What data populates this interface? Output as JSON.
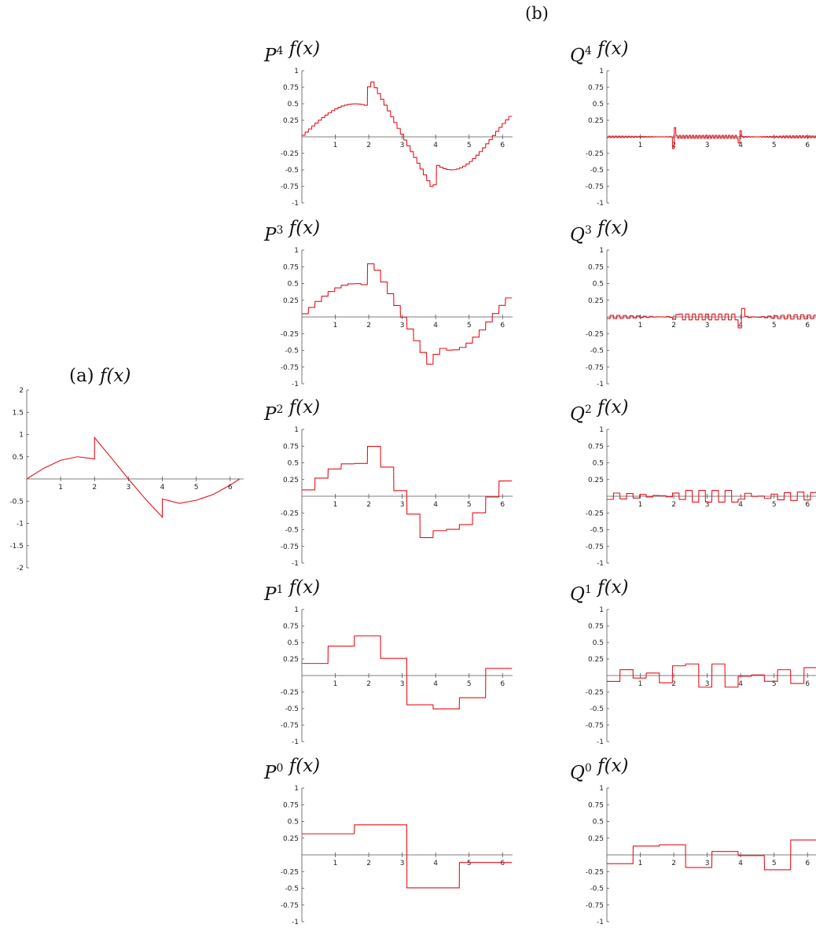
{
  "figure_label_b": "(b)",
  "chart_data": [
    {
      "id": "f",
      "type": "line",
      "title_prefix": "(a) ",
      "title_letter": "",
      "title_sup": "",
      "title_func": "f(x)",
      "xlim": [
        0,
        6.4
      ],
      "ylim": [
        -2,
        2
      ],
      "xticks": [
        1,
        2,
        3,
        4,
        5,
        6
      ],
      "yticks": [
        2,
        1.5,
        1,
        0.5,
        -0.5,
        -1,
        -1.5,
        -2
      ],
      "series": [
        {
          "kind": "function",
          "levels": 0,
          "x": [
            0,
            0.5,
            1,
            1.5,
            2,
            2.0001,
            2.5,
            3,
            3.5,
            4,
            4.0001,
            4.5,
            5,
            5.5,
            6,
            6.28
          ],
          "y": [
            0,
            0.24,
            0.42,
            0.5,
            0.45,
            0.93,
            0.47,
            0.0,
            -0.45,
            -0.86,
            -0.45,
            -0.55,
            -0.48,
            -0.35,
            -0.14,
            0
          ]
        }
      ]
    },
    {
      "id": "P4",
      "type": "line",
      "title_prefix": "",
      "title_letter": "P",
      "title_sup": "4",
      "title_func": "f(x)",
      "xlim": [
        0,
        6.3
      ],
      "ylim": [
        -1,
        1
      ],
      "xticks": [
        1,
        2,
        3,
        4,
        5,
        6
      ],
      "yticks": [
        1,
        0.75,
        0.5,
        0.25,
        -0.25,
        -0.5,
        -0.75,
        -1
      ],
      "series": [
        {
          "kind": "projection",
          "levels": 4
        }
      ]
    },
    {
      "id": "Q4",
      "type": "line",
      "title_prefix": "",
      "title_letter": "Q",
      "title_sup": "4",
      "title_func": "f(x)",
      "xlim": [
        0,
        6.3
      ],
      "ylim": [
        -1,
        1
      ],
      "xticks": [
        1,
        2,
        3,
        4,
        5,
        6
      ],
      "yticks": [
        1,
        0.75,
        0.5,
        0.25,
        -0.25,
        -0.5,
        -0.75,
        -1
      ],
      "series": [
        {
          "kind": "detail",
          "levels": 4
        }
      ]
    },
    {
      "id": "P3",
      "type": "line",
      "title_prefix": "",
      "title_letter": "P",
      "title_sup": "3",
      "title_func": "f(x)",
      "xlim": [
        0,
        6.3
      ],
      "ylim": [
        -1,
        1
      ],
      "xticks": [
        1,
        2,
        3,
        4,
        5,
        6
      ],
      "yticks": [
        1,
        0.75,
        0.5,
        0.25,
        -0.25,
        -0.5,
        -0.75,
        -1
      ],
      "series": [
        {
          "kind": "projection",
          "levels": 3
        }
      ]
    },
    {
      "id": "Q3",
      "type": "line",
      "title_prefix": "",
      "title_letter": "Q",
      "title_sup": "3",
      "title_func": "f(x)",
      "xlim": [
        0,
        6.3
      ],
      "ylim": [
        -1,
        1
      ],
      "xticks": [
        1,
        2,
        3,
        4,
        5,
        6
      ],
      "yticks": [
        1,
        0.75,
        0.5,
        0.25,
        -0.25,
        -0.5,
        -0.75,
        -1
      ],
      "series": [
        {
          "kind": "detail",
          "levels": 3
        }
      ]
    },
    {
      "id": "P2",
      "type": "line",
      "title_prefix": "",
      "title_letter": "P",
      "title_sup": "2",
      "title_func": "f(x)",
      "xlim": [
        0,
        6.3
      ],
      "ylim": [
        -1,
        1
      ],
      "xticks": [
        1,
        2,
        3,
        4,
        5,
        6
      ],
      "yticks": [
        1,
        0.75,
        0.5,
        0.25,
        -0.25,
        -0.5,
        -0.75,
        -1
      ],
      "series": [
        {
          "kind": "projection",
          "levels": 2
        }
      ]
    },
    {
      "id": "Q2",
      "type": "line",
      "title_prefix": "",
      "title_letter": "Q",
      "title_sup": "2",
      "title_func": "f(x)",
      "xlim": [
        0,
        6.3
      ],
      "ylim": [
        -1,
        1
      ],
      "xticks": [
        1,
        2,
        3,
        4,
        5,
        6
      ],
      "yticks": [
        1,
        0.75,
        0.5,
        0.25,
        -0.25,
        -0.5,
        -0.75,
        -1
      ],
      "series": [
        {
          "kind": "detail",
          "levels": 2
        }
      ]
    },
    {
      "id": "P1",
      "type": "line",
      "title_prefix": "",
      "title_letter": "P",
      "title_sup": "1",
      "title_func": "f(x)",
      "xlim": [
        0,
        6.3
      ],
      "ylim": [
        -1,
        1
      ],
      "xticks": [
        1,
        2,
        3,
        4,
        5,
        6
      ],
      "yticks": [
        1,
        0.75,
        0.5,
        0.25,
        -0.25,
        -0.5,
        -0.75,
        -1
      ],
      "series": [
        {
          "kind": "projection",
          "levels": 1
        }
      ]
    },
    {
      "id": "Q1",
      "type": "line",
      "title_prefix": "",
      "title_letter": "Q",
      "title_sup": "1",
      "title_func": "f(x)",
      "xlim": [
        0,
        6.3
      ],
      "ylim": [
        -1,
        1
      ],
      "xticks": [
        1,
        2,
        3,
        4,
        5,
        6
      ],
      "yticks": [
        1,
        0.75,
        0.5,
        0.25,
        -0.25,
        -0.5,
        -0.75,
        -1
      ],
      "series": [
        {
          "kind": "detail",
          "levels": 1
        }
      ]
    },
    {
      "id": "P0",
      "type": "line",
      "title_prefix": "",
      "title_letter": "P",
      "title_sup": "0",
      "title_func": "f(x)",
      "xlim": [
        0,
        6.3
      ],
      "ylim": [
        -1,
        1
      ],
      "xticks": [
        1,
        2,
        3,
        4,
        5,
        6
      ],
      "yticks": [
        1,
        0.75,
        0.5,
        0.25,
        -0.25,
        -0.5,
        -0.75,
        -1
      ],
      "series": [
        {
          "kind": "projection",
          "levels": 0
        }
      ]
    },
    {
      "id": "Q0",
      "type": "line",
      "title_prefix": "",
      "title_letter": "Q",
      "title_sup": "0",
      "title_func": "f(x)",
      "xlim": [
        0,
        6.3
      ],
      "ylim": [
        -1,
        1
      ],
      "xticks": [
        1,
        2,
        3,
        4,
        5,
        6
      ],
      "yticks": [
        1,
        0.75,
        0.5,
        0.25,
        -0.25,
        -0.5,
        -0.75,
        -1
      ],
      "series": [
        {
          "kind": "detail",
          "levels": 0
        }
      ]
    }
  ]
}
